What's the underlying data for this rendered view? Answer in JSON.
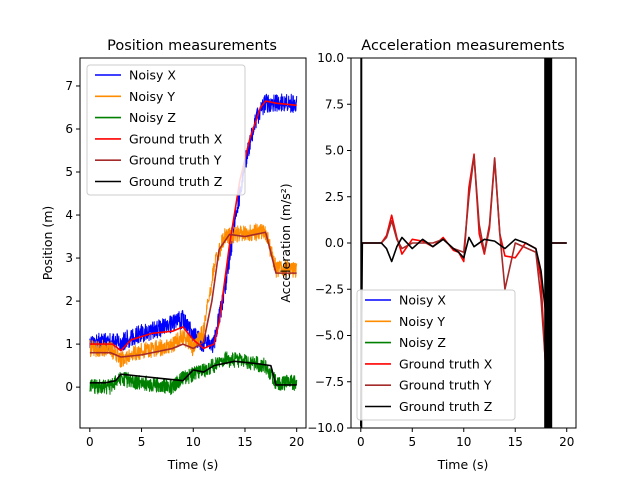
{
  "chart_data": [
    {
      "type": "line",
      "title": "Position measurements",
      "xlabel": "Time (s)",
      "ylabel": "Position (m)",
      "xlim": [
        -0.95,
        20.9
      ],
      "ylim": [
        -0.95,
        7.65
      ],
      "xticks": [
        0,
        5,
        10,
        15,
        20
      ],
      "yticks": [
        0,
        1,
        2,
        3,
        4,
        5,
        6,
        7
      ],
      "legend_position": "upper-left",
      "series": [
        {
          "name": "Noisy X",
          "color": "#0000ff",
          "noise": 0.22,
          "points": [
            [
              0,
              1.05
            ],
            [
              2,
              1.05
            ],
            [
              3,
              1.05
            ],
            [
              5,
              1.25
            ],
            [
              8,
              1.45
            ],
            [
              9,
              1.6
            ],
            [
              10,
              1.2
            ],
            [
              11,
              1.0
            ],
            [
              12,
              1.0
            ],
            [
              13,
              2.2
            ],
            [
              14,
              3.8
            ],
            [
              15,
              5.2
            ],
            [
              16,
              6.2
            ],
            [
              17,
              6.6
            ],
            [
              18,
              6.6
            ],
            [
              20,
              6.6
            ]
          ]
        },
        {
          "name": "Noisy Y",
          "color": "#ff8c00",
          "noise": 0.2,
          "points": [
            [
              0,
              0.9
            ],
            [
              2,
              0.9
            ],
            [
              3,
              0.65
            ],
            [
              5,
              0.85
            ],
            [
              8,
              0.95
            ],
            [
              9,
              1.2
            ],
            [
              10,
              0.9
            ],
            [
              11,
              1.3
            ],
            [
              12,
              2.8
            ],
            [
              13,
              3.5
            ],
            [
              15,
              3.6
            ],
            [
              17,
              3.6
            ],
            [
              18,
              2.75
            ],
            [
              20,
              2.75
            ]
          ]
        },
        {
          "name": "Noisy Z",
          "color": "#008000",
          "noise": 0.18,
          "points": [
            [
              0,
              0.0
            ],
            [
              2,
              0.0
            ],
            [
              3,
              0.2
            ],
            [
              5,
              0.1
            ],
            [
              8,
              0.0
            ],
            [
              9,
              0.2
            ],
            [
              10,
              0.3
            ],
            [
              12,
              0.5
            ],
            [
              13,
              0.65
            ],
            [
              15,
              0.6
            ],
            [
              17,
              0.5
            ],
            [
              18,
              0.1
            ],
            [
              20,
              0.1
            ]
          ]
        },
        {
          "name": "Ground truth X",
          "color": "#ff0000",
          "points": [
            [
              0,
              1.0
            ],
            [
              2.2,
              1.0
            ],
            [
              3,
              0.85
            ],
            [
              4,
              1.1
            ],
            [
              6,
              1.25
            ],
            [
              8,
              1.3
            ],
            [
              9,
              1.4
            ],
            [
              10,
              1.1
            ],
            [
              11,
              0.9
            ],
            [
              12,
              1.0
            ],
            [
              12.5,
              1.5
            ],
            [
              13.5,
              3.3
            ],
            [
              14.5,
              4.8
            ],
            [
              15.5,
              5.8
            ],
            [
              16.5,
              6.5
            ],
            [
              17,
              6.65
            ],
            [
              18,
              6.6
            ],
            [
              20,
              6.55
            ]
          ]
        },
        {
          "name": "Ground truth Y",
          "color": "#a52a2a",
          "points": [
            [
              0,
              0.8
            ],
            [
              2,
              0.8
            ],
            [
              3,
              0.7
            ],
            [
              5,
              0.75
            ],
            [
              8,
              0.9
            ],
            [
              9,
              1.0
            ],
            [
              10,
              0.9
            ],
            [
              11,
              1.05
            ],
            [
              11.8,
              2.0
            ],
            [
              12.5,
              3.2
            ],
            [
              13.5,
              3.55
            ],
            [
              15,
              3.5
            ],
            [
              17,
              3.6
            ],
            [
              18,
              2.65
            ],
            [
              20,
              2.65
            ]
          ]
        },
        {
          "name": "Ground truth Z",
          "color": "#000000",
          "points": [
            [
              0,
              0.1
            ],
            [
              1.5,
              0.1
            ],
            [
              2.5,
              0.15
            ],
            [
              3,
              0.3
            ],
            [
              5,
              0.25
            ],
            [
              7,
              0.2
            ],
            [
              9,
              0.15
            ],
            [
              10,
              0.4
            ],
            [
              11,
              0.35
            ],
            [
              12,
              0.5
            ],
            [
              13,
              0.55
            ],
            [
              14,
              0.6
            ],
            [
              16,
              0.55
            ],
            [
              17.5,
              0.5
            ],
            [
              18,
              0.05
            ],
            [
              20,
              0.05
            ]
          ]
        }
      ]
    },
    {
      "type": "line",
      "title": "Acceleration measurements",
      "xlabel": "Time (s)",
      "ylabel": "Acceleration (m/s²)",
      "xlim": [
        -0.95,
        20.9
      ],
      "ylim": [
        -10.0,
        10.0
      ],
      "xticks": [
        0,
        5,
        10,
        15,
        20
      ],
      "yticks": [
        -10.0,
        -7.5,
        -5.0,
        -2.5,
        0.0,
        2.5,
        5.0,
        7.5,
        10.0
      ],
      "ytick_labels": [
        "−10.0",
        "−7.5",
        "−5.0",
        "−2.5",
        "0.0",
        "2.5",
        "5.0",
        "7.5",
        "10.0"
      ],
      "legend_position": "lower-left",
      "series": [
        {
          "name": "Noisy X",
          "color": "#0000ff"
        },
        {
          "name": "Noisy Y",
          "color": "#ff8c00"
        },
        {
          "name": "Noisy Z",
          "color": "#008000"
        },
        {
          "name": "Ground truth X",
          "color": "#ff0000",
          "points": [
            [
              0,
              0
            ],
            [
              2,
              0
            ],
            [
              2.5,
              0.4
            ],
            [
              3,
              1.5
            ],
            [
              3.5,
              0.3
            ],
            [
              4,
              -0.6
            ],
            [
              5,
              0.2
            ],
            [
              6,
              0.1
            ],
            [
              7,
              -0.2
            ],
            [
              8,
              0.3
            ],
            [
              9,
              -0.4
            ],
            [
              9.5,
              -0.5
            ],
            [
              10,
              -1.0
            ],
            [
              10.5,
              3.0
            ],
            [
              11,
              4.8
            ],
            [
              11.5,
              0.5
            ],
            [
              12,
              -0.6
            ],
            [
              12.5,
              0.8
            ],
            [
              13,
              4.5
            ],
            [
              13.5,
              0.5
            ],
            [
              14,
              -0.7
            ],
            [
              15,
              -0.8
            ],
            [
              16,
              0
            ],
            [
              17,
              -0.3
            ],
            [
              17.5,
              -2.0
            ],
            [
              18,
              -7.3
            ],
            [
              18.3,
              -1.5
            ],
            [
              18.5,
              0
            ],
            [
              20,
              0
            ]
          ]
        },
        {
          "name": "Ground truth Y",
          "color": "#a52a2a",
          "points": [
            [
              0,
              0
            ],
            [
              2,
              0
            ],
            [
              2.5,
              0.3
            ],
            [
              3,
              1.2
            ],
            [
              3.5,
              0.2
            ],
            [
              4,
              -0.3
            ],
            [
              5,
              0
            ],
            [
              7,
              0
            ],
            [
              8,
              0.2
            ],
            [
              9,
              -0.3
            ],
            [
              10,
              -0.5
            ],
            [
              10.5,
              2.5
            ],
            [
              11,
              4.7
            ],
            [
              11.5,
              1.0
            ],
            [
              12,
              -0.5
            ],
            [
              12.5,
              1.0
            ],
            [
              13,
              4.6
            ],
            [
              13.5,
              0.5
            ],
            [
              14,
              -2.5
            ],
            [
              15,
              0
            ],
            [
              17,
              -0.5
            ],
            [
              17.5,
              -3.0
            ],
            [
              18,
              -7.0
            ],
            [
              18.3,
              -2.0
            ],
            [
              18.5,
              0
            ],
            [
              20,
              0
            ]
          ]
        },
        {
          "name": "Ground truth Z",
          "color": "#000000",
          "points": [
            [
              0,
              -9.9
            ],
            [
              0.15,
              0
            ],
            [
              2,
              0
            ],
            [
              2.5,
              -0.3
            ],
            [
              3,
              -1.0
            ],
            [
              3.5,
              -0.2
            ],
            [
              4,
              0.3
            ],
            [
              5,
              -0.3
            ],
            [
              6,
              0.2
            ],
            [
              7,
              -0.2
            ],
            [
              8,
              0.2
            ],
            [
              9,
              -0.3
            ],
            [
              9.5,
              -0.5
            ],
            [
              10,
              -0.8
            ],
            [
              10.5,
              0.3
            ],
            [
              11,
              -0.2
            ],
            [
              12,
              0.2
            ],
            [
              13,
              0.1
            ],
            [
              14,
              -0.3
            ],
            [
              15,
              0.2
            ],
            [
              16,
              0
            ],
            [
              17,
              -0.3
            ],
            [
              17.5,
              -1.5
            ],
            [
              18,
              -4.0
            ],
            [
              18.3,
              -1.0
            ],
            [
              18.5,
              0
            ],
            [
              20,
              0
            ]
          ]
        }
      ]
    }
  ]
}
